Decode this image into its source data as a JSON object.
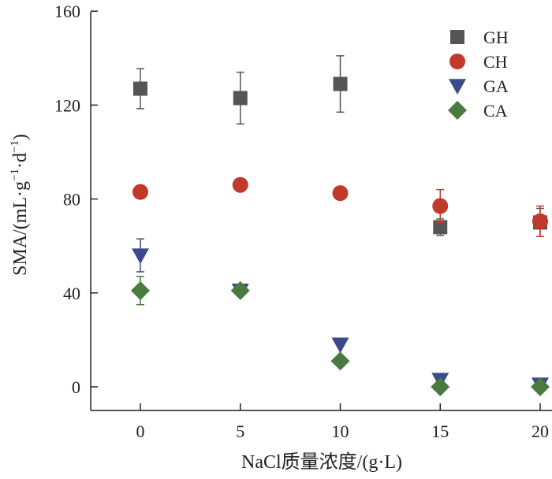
{
  "chart_data": {
    "type": "scatter",
    "xlabel": "NaCl质量浓度/(g·L)",
    "ylabel_parts": {
      "prefix": "SMA/(mL·g",
      "sup1": "−1",
      "mid": "·d",
      "sup2": "−1",
      "suffix": ")"
    },
    "x": [
      0,
      5,
      10,
      15,
      20
    ],
    "x_ticks": [
      "0",
      "5",
      "10",
      "15",
      "20"
    ],
    "y_ticks": [
      "0",
      "40",
      "80",
      "120",
      "160"
    ],
    "xlim": [
      0,
      20
    ],
    "ylim": [
      0,
      160
    ],
    "grid": false,
    "legend_position": "top-right",
    "series": [
      {
        "name": "GH",
        "marker": "square",
        "color": "#555555",
        "values": [
          127,
          123,
          129,
          68,
          70
        ],
        "errors": [
          8.5,
          11,
          12,
          3.5,
          6
        ]
      },
      {
        "name": "CH",
        "marker": "circle",
        "color": "#c0392b",
        "values": [
          83,
          86,
          82.5,
          77,
          70.5
        ],
        "errors": [
          0,
          0,
          0,
          7,
          6.5
        ]
      },
      {
        "name": "GA",
        "marker": "triangle-down",
        "color": "#3a4a8c",
        "values": [
          56,
          41,
          18,
          3,
          1
        ],
        "errors": [
          7,
          0,
          0,
          0,
          0
        ]
      },
      {
        "name": "CA",
        "marker": "diamond",
        "color": "#4a7a3f",
        "values": [
          41,
          41,
          11,
          0,
          0
        ],
        "errors": [
          6,
          0,
          0,
          0,
          0
        ]
      }
    ]
  }
}
